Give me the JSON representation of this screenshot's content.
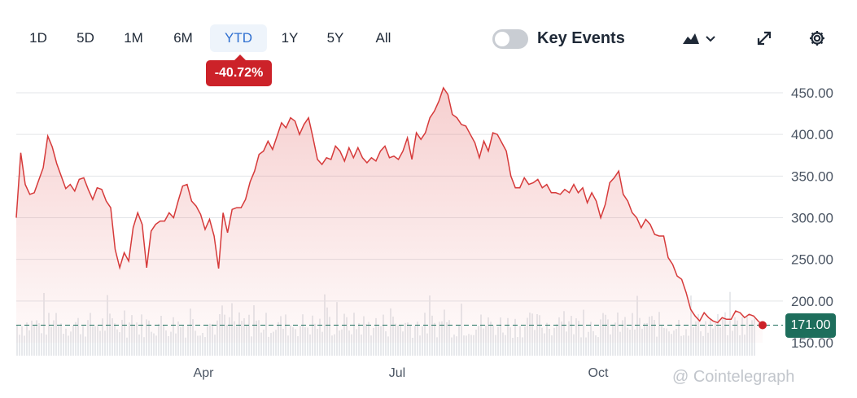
{
  "ranges": [
    "1D",
    "5D",
    "1M",
    "6M",
    "YTD",
    "1Y",
    "5Y",
    "All"
  ],
  "active_range": "YTD",
  "change_badge": "-40.72%",
  "key_events_label": "Key Events",
  "current_price": "171.00",
  "watermark": "@ Cointelegraph",
  "colors": {
    "line": "#d63a3a",
    "accent": "#2f6fd0",
    "negative": "#cc2229",
    "price_tag": "#1e6e5c"
  },
  "icons": [
    "area-chart-icon",
    "chevron-down-icon",
    "expand-icon",
    "gear-icon"
  ],
  "chart_data": {
    "type": "area",
    "y_ticks": [
      "450.00",
      "400.00",
      "350.00",
      "300.00",
      "250.00",
      "200.00",
      "150.00"
    ],
    "x_ticks": [
      "Apr",
      "Jul",
      "Oct"
    ],
    "ylim": [
      150,
      470
    ],
    "reference_value": 171,
    "grid": true,
    "series": [
      {
        "values": [
          300,
          378,
          340,
          328,
          330,
          345,
          360,
          398,
          385,
          365,
          350,
          335,
          340,
          332,
          346,
          348,
          334,
          322,
          336,
          334,
          320,
          312,
          262,
          240,
          258,
          248,
          288,
          306,
          292,
          240,
          284,
          292,
          296,
          296,
          306,
          300,
          320,
          338,
          340,
          320,
          314,
          304,
          286,
          298,
          278,
          239,
          306,
          282,
          310,
          312,
          312,
          322,
          343,
          356,
          376,
          380,
          392,
          382,
          398,
          414,
          408,
          420,
          416,
          400,
          412,
          420,
          396,
          370,
          364,
          372,
          370,
          386,
          380,
          368,
          384,
          372,
          384,
          372,
          366,
          372,
          368,
          380,
          386,
          372,
          374,
          370,
          380,
          396,
          370,
          402,
          394,
          402,
          420,
          428,
          440,
          456,
          448,
          424,
          420,
          412,
          410,
          400,
          390,
          372,
          392,
          380,
          402,
          400,
          390,
          380,
          350,
          336,
          336,
          348,
          340,
          342,
          346,
          336,
          340,
          330,
          330,
          328,
          334,
          330,
          340,
          330,
          336,
          318,
          330,
          320,
          300,
          316,
          342,
          348,
          356,
          328,
          320,
          306,
          300,
          288,
          298,
          292,
          280,
          278,
          278,
          252,
          244,
          230,
          226,
          210,
          190,
          182,
          176,
          186,
          180,
          176,
          174,
          180,
          178,
          178,
          188,
          186,
          180,
          184,
          182,
          176,
          171
        ]
      }
    ]
  }
}
